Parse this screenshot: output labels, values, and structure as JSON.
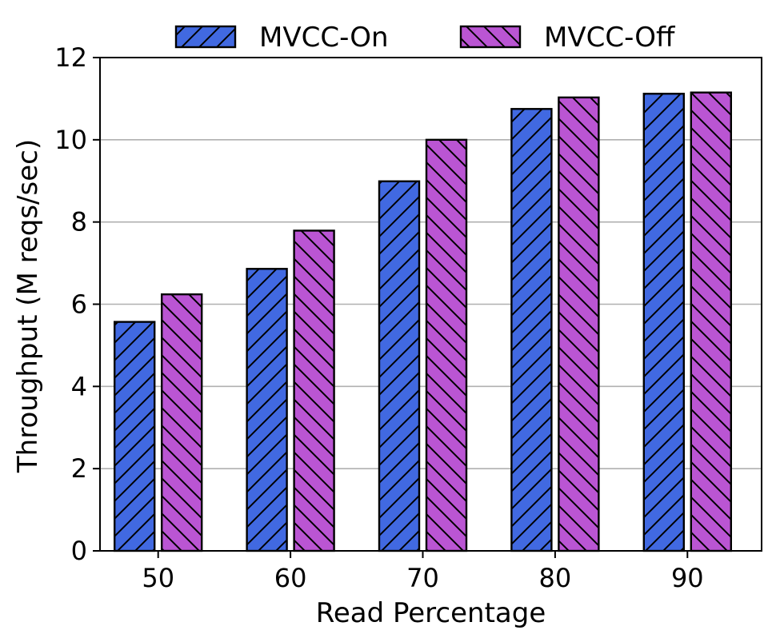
{
  "chart_data": {
    "type": "bar",
    "title": "",
    "xlabel": "Read Percentage",
    "ylabel": "Throughput (M reqs/sec)",
    "categories": [
      "50",
      "60",
      "70",
      "80",
      "90"
    ],
    "series": [
      {
        "name": "MVCC-On",
        "color": "#4169e1",
        "hatch": "forward",
        "values": [
          5.57,
          6.86,
          8.99,
          10.75,
          11.12
        ]
      },
      {
        "name": "MVCC-Off",
        "color": "#ba55d3",
        "hatch": "backward",
        "values": [
          6.24,
          7.79,
          10.0,
          11.03,
          11.15
        ]
      }
    ],
    "ylim": [
      0,
      12
    ],
    "yticks": [
      "0",
      "2",
      "4",
      "6",
      "8",
      "10",
      "12"
    ],
    "grid": "horizontal",
    "legend": "top-center"
  }
}
